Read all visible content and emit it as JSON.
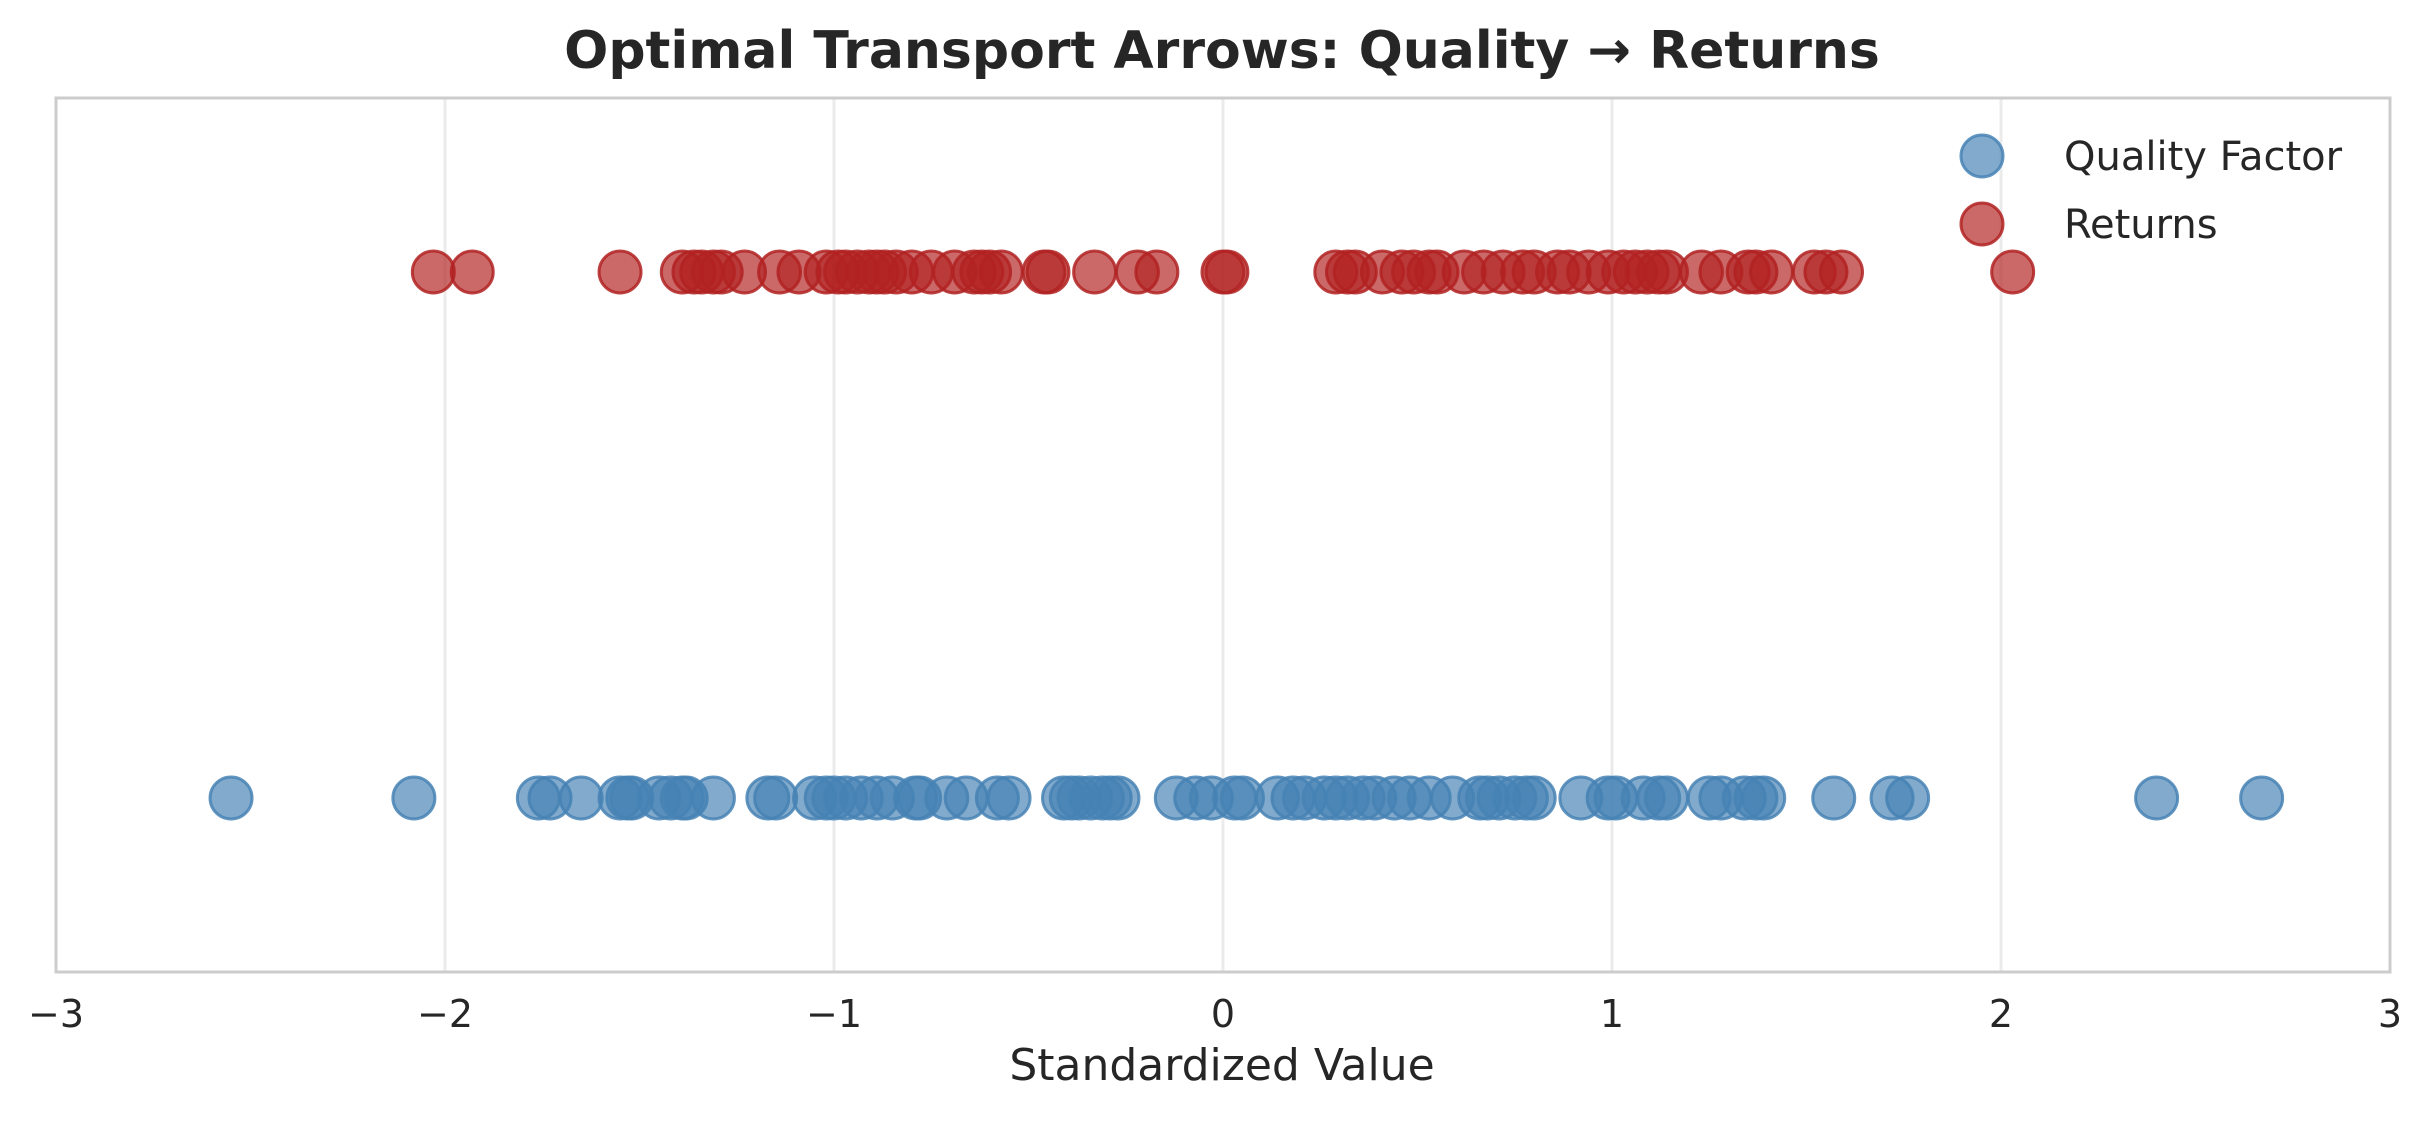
{
  "chart_data": {
    "type": "scatter",
    "title": "Optimal Transport Arrows: Quality → Returns",
    "xlabel": "Standardized Value",
    "ylabel": "",
    "xlim": [
      -3,
      3
    ],
    "xticks": [
      -3,
      -2,
      -1,
      0,
      1,
      2,
      3
    ],
    "xtick_labels": [
      "−3",
      "−2",
      "−1",
      "0",
      "1",
      "2",
      "3"
    ],
    "grid": "vertical",
    "legend": "top-right",
    "series": [
      {
        "name": "Quality Factor",
        "color": "#4682b4",
        "y": 0,
        "x": [
          -2.55,
          -2.08,
          -1.76,
          -1.73,
          -1.65,
          -1.55,
          -1.53,
          -1.52,
          -1.45,
          -1.42,
          -1.39,
          -1.38,
          -1.31,
          -1.17,
          -1.15,
          -1.05,
          -1.02,
          -1.0,
          -0.97,
          -0.93,
          -0.89,
          -0.85,
          -0.79,
          -0.78,
          -0.71,
          -0.66,
          -0.58,
          -0.55,
          -0.41,
          -0.39,
          -0.37,
          -0.34,
          -0.31,
          -0.29,
          -0.27,
          -0.12,
          -0.07,
          -0.03,
          0.03,
          0.05,
          0.14,
          0.18,
          0.21,
          0.26,
          0.29,
          0.32,
          0.36,
          0.39,
          0.44,
          0.48,
          0.53,
          0.59,
          0.66,
          0.68,
          0.71,
          0.75,
          0.78,
          0.8,
          0.92,
          0.99,
          1.01,
          1.08,
          1.12,
          1.14,
          1.25,
          1.28,
          1.34,
          1.37,
          1.39,
          1.57,
          1.72,
          1.76,
          2.4,
          2.67
        ]
      },
      {
        "name": "Returns",
        "color": "#b22222",
        "y": 1,
        "x": [
          -2.03,
          -1.93,
          -1.55,
          -1.39,
          -1.36,
          -1.34,
          -1.31,
          -1.29,
          -1.23,
          -1.14,
          -1.09,
          -1.02,
          -0.99,
          -0.97,
          -0.94,
          -0.91,
          -0.89,
          -0.87,
          -0.84,
          -0.8,
          -0.75,
          -0.69,
          -0.64,
          -0.62,
          -0.6,
          -0.57,
          -0.46,
          -0.45,
          -0.33,
          -0.22,
          -0.17,
          0.0,
          0.01,
          0.29,
          0.32,
          0.34,
          0.41,
          0.46,
          0.49,
          0.53,
          0.55,
          0.62,
          0.67,
          0.72,
          0.77,
          0.8,
          0.86,
          0.89,
          0.94,
          0.99,
          1.03,
          1.06,
          1.09,
          1.12,
          1.14,
          1.23,
          1.28,
          1.35,
          1.37,
          1.41,
          1.52,
          1.55,
          1.59,
          2.03
        ]
      }
    ]
  }
}
